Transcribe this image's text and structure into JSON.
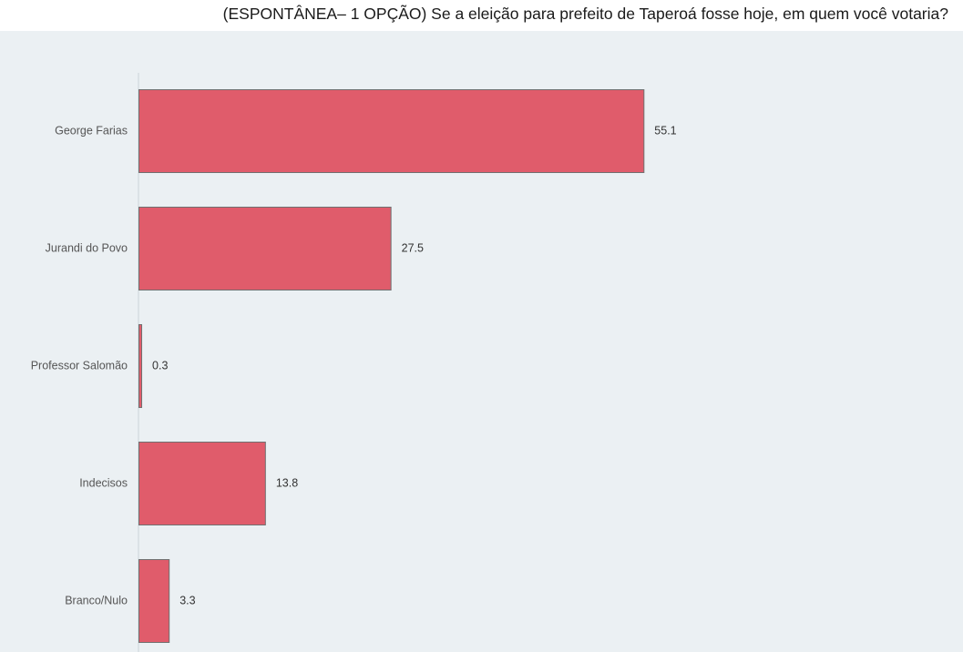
{
  "chart_data": {
    "type": "bar",
    "orientation": "horizontal",
    "title": "(ESPONTÂNEA– 1 OPÇÃO) Se a eleição para prefeito de Taperoá fosse hoje, em quem você votaria?",
    "categories": [
      "George Farias",
      "Jurandi do Povo",
      "Professor Salomão",
      "Indecisos",
      "Branco/Nulo"
    ],
    "values": [
      55.1,
      27.5,
      0.3,
      13.8,
      3.3
    ],
    "value_labels": [
      "55.1",
      "27.5",
      "0.3",
      "13.8",
      "3.3"
    ],
    "xlim": [
      0,
      60
    ],
    "grid": false,
    "legend": "none",
    "colors": {
      "bar": "#e05c6b",
      "bar_border": "#707070",
      "plot_background": "#ebf0f3",
      "axis_line": "#d6dde2"
    }
  }
}
